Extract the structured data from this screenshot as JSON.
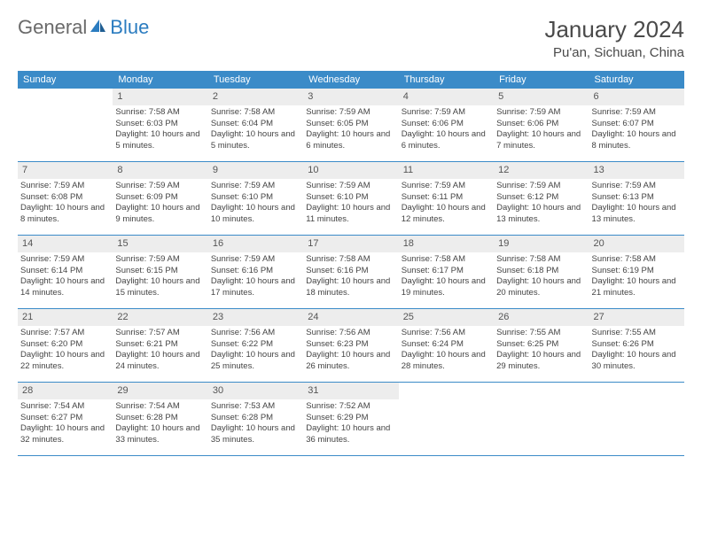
{
  "brand": {
    "part1": "General",
    "part2": "Blue"
  },
  "title": "January 2024",
  "location": "Pu'an, Sichuan, China",
  "colors": {
    "header_bg": "#3b8bc8",
    "header_text": "#ffffff",
    "daynum_bg": "#ededed",
    "body_text": "#444444",
    "brand_gray": "#6a6a6a",
    "brand_blue": "#2b7cc0",
    "rule": "#3b8bc8"
  },
  "dow": [
    "Sunday",
    "Monday",
    "Tuesday",
    "Wednesday",
    "Thursday",
    "Friday",
    "Saturday"
  ],
  "weeks": [
    [
      {
        "n": "",
        "sr": "",
        "ss": "",
        "dl": ""
      },
      {
        "n": "1",
        "sr": "Sunrise: 7:58 AM",
        "ss": "Sunset: 6:03 PM",
        "dl": "Daylight: 10 hours and 5 minutes."
      },
      {
        "n": "2",
        "sr": "Sunrise: 7:58 AM",
        "ss": "Sunset: 6:04 PM",
        "dl": "Daylight: 10 hours and 5 minutes."
      },
      {
        "n": "3",
        "sr": "Sunrise: 7:59 AM",
        "ss": "Sunset: 6:05 PM",
        "dl": "Daylight: 10 hours and 6 minutes."
      },
      {
        "n": "4",
        "sr": "Sunrise: 7:59 AM",
        "ss": "Sunset: 6:06 PM",
        "dl": "Daylight: 10 hours and 6 minutes."
      },
      {
        "n": "5",
        "sr": "Sunrise: 7:59 AM",
        "ss": "Sunset: 6:06 PM",
        "dl": "Daylight: 10 hours and 7 minutes."
      },
      {
        "n": "6",
        "sr": "Sunrise: 7:59 AM",
        "ss": "Sunset: 6:07 PM",
        "dl": "Daylight: 10 hours and 8 minutes."
      }
    ],
    [
      {
        "n": "7",
        "sr": "Sunrise: 7:59 AM",
        "ss": "Sunset: 6:08 PM",
        "dl": "Daylight: 10 hours and 8 minutes."
      },
      {
        "n": "8",
        "sr": "Sunrise: 7:59 AM",
        "ss": "Sunset: 6:09 PM",
        "dl": "Daylight: 10 hours and 9 minutes."
      },
      {
        "n": "9",
        "sr": "Sunrise: 7:59 AM",
        "ss": "Sunset: 6:10 PM",
        "dl": "Daylight: 10 hours and 10 minutes."
      },
      {
        "n": "10",
        "sr": "Sunrise: 7:59 AM",
        "ss": "Sunset: 6:10 PM",
        "dl": "Daylight: 10 hours and 11 minutes."
      },
      {
        "n": "11",
        "sr": "Sunrise: 7:59 AM",
        "ss": "Sunset: 6:11 PM",
        "dl": "Daylight: 10 hours and 12 minutes."
      },
      {
        "n": "12",
        "sr": "Sunrise: 7:59 AM",
        "ss": "Sunset: 6:12 PM",
        "dl": "Daylight: 10 hours and 13 minutes."
      },
      {
        "n": "13",
        "sr": "Sunrise: 7:59 AM",
        "ss": "Sunset: 6:13 PM",
        "dl": "Daylight: 10 hours and 13 minutes."
      }
    ],
    [
      {
        "n": "14",
        "sr": "Sunrise: 7:59 AM",
        "ss": "Sunset: 6:14 PM",
        "dl": "Daylight: 10 hours and 14 minutes."
      },
      {
        "n": "15",
        "sr": "Sunrise: 7:59 AM",
        "ss": "Sunset: 6:15 PM",
        "dl": "Daylight: 10 hours and 15 minutes."
      },
      {
        "n": "16",
        "sr": "Sunrise: 7:59 AM",
        "ss": "Sunset: 6:16 PM",
        "dl": "Daylight: 10 hours and 17 minutes."
      },
      {
        "n": "17",
        "sr": "Sunrise: 7:58 AM",
        "ss": "Sunset: 6:16 PM",
        "dl": "Daylight: 10 hours and 18 minutes."
      },
      {
        "n": "18",
        "sr": "Sunrise: 7:58 AM",
        "ss": "Sunset: 6:17 PM",
        "dl": "Daylight: 10 hours and 19 minutes."
      },
      {
        "n": "19",
        "sr": "Sunrise: 7:58 AM",
        "ss": "Sunset: 6:18 PM",
        "dl": "Daylight: 10 hours and 20 minutes."
      },
      {
        "n": "20",
        "sr": "Sunrise: 7:58 AM",
        "ss": "Sunset: 6:19 PM",
        "dl": "Daylight: 10 hours and 21 minutes."
      }
    ],
    [
      {
        "n": "21",
        "sr": "Sunrise: 7:57 AM",
        "ss": "Sunset: 6:20 PM",
        "dl": "Daylight: 10 hours and 22 minutes."
      },
      {
        "n": "22",
        "sr": "Sunrise: 7:57 AM",
        "ss": "Sunset: 6:21 PM",
        "dl": "Daylight: 10 hours and 24 minutes."
      },
      {
        "n": "23",
        "sr": "Sunrise: 7:56 AM",
        "ss": "Sunset: 6:22 PM",
        "dl": "Daylight: 10 hours and 25 minutes."
      },
      {
        "n": "24",
        "sr": "Sunrise: 7:56 AM",
        "ss": "Sunset: 6:23 PM",
        "dl": "Daylight: 10 hours and 26 minutes."
      },
      {
        "n": "25",
        "sr": "Sunrise: 7:56 AM",
        "ss": "Sunset: 6:24 PM",
        "dl": "Daylight: 10 hours and 28 minutes."
      },
      {
        "n": "26",
        "sr": "Sunrise: 7:55 AM",
        "ss": "Sunset: 6:25 PM",
        "dl": "Daylight: 10 hours and 29 minutes."
      },
      {
        "n": "27",
        "sr": "Sunrise: 7:55 AM",
        "ss": "Sunset: 6:26 PM",
        "dl": "Daylight: 10 hours and 30 minutes."
      }
    ],
    [
      {
        "n": "28",
        "sr": "Sunrise: 7:54 AM",
        "ss": "Sunset: 6:27 PM",
        "dl": "Daylight: 10 hours and 32 minutes."
      },
      {
        "n": "29",
        "sr": "Sunrise: 7:54 AM",
        "ss": "Sunset: 6:28 PM",
        "dl": "Daylight: 10 hours and 33 minutes."
      },
      {
        "n": "30",
        "sr": "Sunrise: 7:53 AM",
        "ss": "Sunset: 6:28 PM",
        "dl": "Daylight: 10 hours and 35 minutes."
      },
      {
        "n": "31",
        "sr": "Sunrise: 7:52 AM",
        "ss": "Sunset: 6:29 PM",
        "dl": "Daylight: 10 hours and 36 minutes."
      },
      {
        "n": "",
        "sr": "",
        "ss": "",
        "dl": ""
      },
      {
        "n": "",
        "sr": "",
        "ss": "",
        "dl": ""
      },
      {
        "n": "",
        "sr": "",
        "ss": "",
        "dl": ""
      }
    ]
  ]
}
